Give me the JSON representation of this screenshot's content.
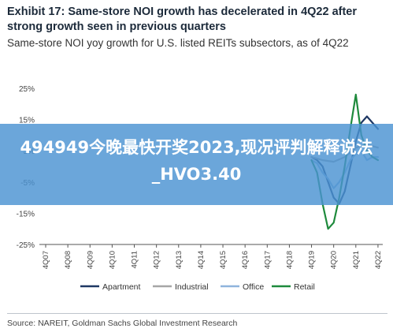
{
  "header": {
    "title": "Exhibit 17: Same-store NOI growth has decelerated in 4Q22 after strong growth seen in previous quarters",
    "subtitle": "Same-store NOI yoy growth for U.S. listed REITs subsectors, as of 4Q22"
  },
  "overlay": {
    "text": "494949今晚最快开奖2023,现况评判解释说法_HVO3.40",
    "color": "#4a93d2"
  },
  "source": "Source: NAREIT, Goldman Sachs Global Investment Research",
  "chart_data": {
    "type": "line",
    "title": "Same-store NOI yoy growth for U.S. listed REITs subsectors, as of 4Q22",
    "xlabel": "",
    "ylabel": "",
    "ylim": [
      -25,
      25
    ],
    "yticks": [
      25,
      15,
      5,
      -5,
      -15,
      -25
    ],
    "ytick_labels": [
      "25%",
      "15%",
      "5%",
      "-5%",
      "-15%",
      "-25%"
    ],
    "x": [
      "4Q07",
      "4Q08",
      "4Q09",
      "4Q10",
      "4Q11",
      "4Q12",
      "4Q13",
      "4Q14",
      "4Q15",
      "4Q16",
      "4Q17",
      "4Q18",
      "4Q19",
      "4Q20",
      "4Q21",
      "4Q22"
    ],
    "x_index": [
      0,
      1,
      2,
      3,
      4,
      5,
      6,
      7,
      8,
      9,
      10,
      11,
      12,
      13,
      14,
      15
    ],
    "grid": false,
    "legend_position": "bottom",
    "series": [
      {
        "name": "Apartment",
        "color": "#1f3864",
        "x": [
          12,
          12.25,
          12.5,
          12.75,
          13,
          13.25,
          13.5,
          13.75,
          14,
          14.25,
          14.5,
          14.75,
          15
        ],
        "values": [
          3,
          2,
          0,
          -5,
          -10,
          -12,
          -8,
          0,
          8,
          14,
          16,
          14,
          12
        ]
      },
      {
        "name": "Industrial",
        "color": "#a6a6a6",
        "x": [
          12,
          12.5,
          13,
          13.5,
          14,
          14.5,
          15
        ],
        "values": [
          3,
          2,
          1.5,
          3,
          6,
          7,
          6
        ]
      },
      {
        "name": "Office",
        "color": "#8fb4dc",
        "x": [
          12,
          12.25,
          12.5,
          12.75,
          13,
          13.25,
          13.5,
          13.75,
          14,
          14.25,
          14.5,
          14.75,
          15
        ],
        "values": [
          2,
          1,
          -2,
          -4,
          -7,
          -5,
          -2,
          2,
          4,
          5,
          2,
          3,
          3
        ]
      },
      {
        "name": "Retail",
        "color": "#1e8a3c",
        "x": [
          12,
          12.25,
          12.5,
          12.75,
          13,
          13.25,
          13.5,
          13.75,
          14,
          14.25,
          14.5,
          14.75,
          15
        ],
        "values": [
          2,
          -2,
          -12,
          -20,
          -18,
          -10,
          0,
          12,
          23,
          10,
          5,
          3,
          2
        ]
      }
    ]
  }
}
